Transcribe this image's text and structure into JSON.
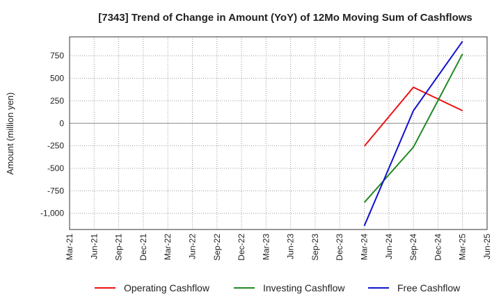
{
  "chart_data": {
    "type": "line",
    "title": "[7343]  Trend of Change in Amount (YoY) of 12Mo Moving Sum of Cashflows",
    "xlabel": "",
    "ylabel": "Amount (million yen)",
    "categories": [
      "Mar-21",
      "Jun-21",
      "Sep-21",
      "Dec-21",
      "Mar-22",
      "Jun-22",
      "Sep-22",
      "Dec-22",
      "Mar-23",
      "Jun-23",
      "Sep-23",
      "Dec-23",
      "Mar-24",
      "Jun-24",
      "Sep-24",
      "Dec-24",
      "Mar-25",
      "Jun-25"
    ],
    "ylim": [
      -1180,
      960
    ],
    "yticks": [
      750,
      500,
      250,
      0,
      -250,
      -500,
      -750,
      -1000
    ],
    "ytick_labels": [
      "750",
      "500",
      "250",
      "0",
      "-250",
      "-500",
      "-750",
      "-1,000"
    ],
    "grid": true,
    "legend_position": "bottom",
    "series": [
      {
        "name": "Operating Cashflow",
        "color": "#ee1111",
        "x": [
          "Mar-24",
          "Sep-24",
          "Mar-25"
        ],
        "values": [
          -255,
          400,
          140
        ]
      },
      {
        "name": "Investing Cashflow",
        "color": "#228822",
        "x": [
          "Mar-24",
          "Sep-24",
          "Mar-25"
        ],
        "values": [
          -880,
          -265,
          770
        ]
      },
      {
        "name": "Free Cashflow",
        "color": "#1111cc",
        "x": [
          "Mar-24",
          "Sep-24",
          "Mar-25"
        ],
        "values": [
          -1140,
          140,
          910
        ]
      }
    ]
  }
}
